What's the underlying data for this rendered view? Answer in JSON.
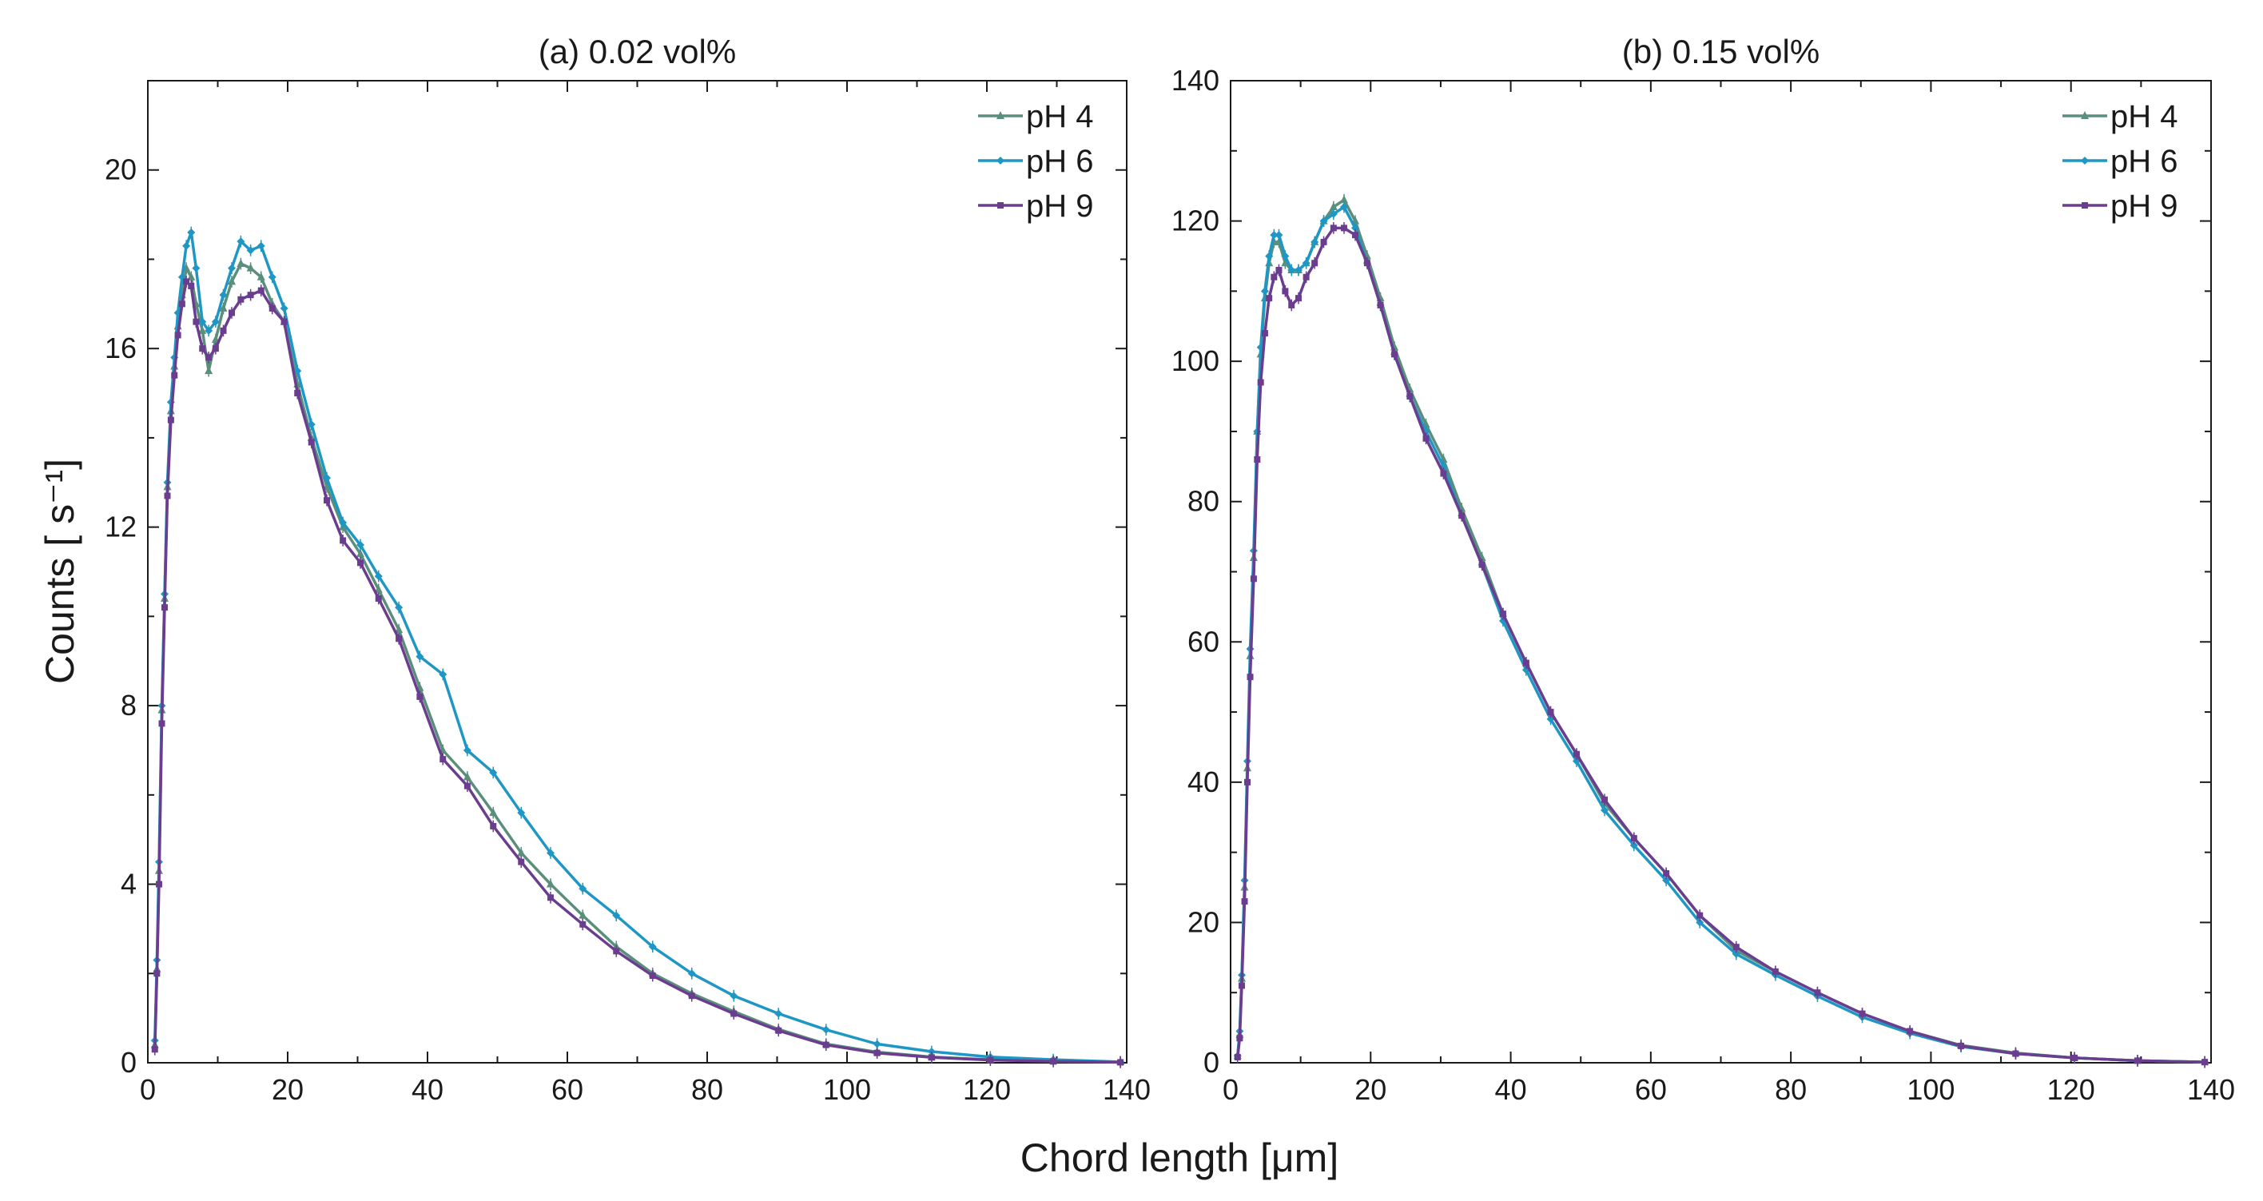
{
  "figure": {
    "xlabel": "Chord length [μm]",
    "ylabel": "Counts [ s⁻¹]"
  },
  "chart_data": [
    {
      "type": "line",
      "title": "(a) 0.02 vol%",
      "xlabel": "Chord length [μm]",
      "ylabel": "Counts [ s⁻¹]",
      "xlim": [
        0,
        140
      ],
      "ylim": [
        0,
        22
      ],
      "xticks": [
        0,
        20,
        40,
        60,
        80,
        100,
        120,
        140
      ],
      "yticks": [
        0,
        4,
        8,
        12,
        16,
        20
      ],
      "grid": false,
      "legend_position": "top-right",
      "series": [
        {
          "name": "pH 4",
          "color": "#5a8f7b",
          "marker": "triangle",
          "x": [
            1,
            1.3,
            1.6,
            2,
            2.4,
            2.8,
            3.3,
            3.8,
            4.3,
            4.9,
            5.5,
            6.2,
            6.9,
            7.8,
            8.7,
            9.7,
            10.8,
            12,
            13.3,
            14.7,
            16.2,
            17.8,
            19.5,
            21.4,
            23.4,
            25.6,
            27.9,
            30.4,
            33,
            35.9,
            38.9,
            42.2,
            45.7,
            49.4,
            53.4,
            57.6,
            62.2,
            67,
            72.2,
            77.8,
            83.8,
            90.2,
            97,
            104.3,
            112.1,
            120.5,
            129.5,
            139.1
          ],
          "values": [
            0.4,
            2.1,
            4.3,
            7.9,
            10.4,
            12.9,
            14.6,
            15.6,
            16.5,
            17.2,
            17.8,
            17.6,
            17.0,
            16.4,
            15.5,
            16.2,
            16.9,
            17.5,
            17.9,
            17.8,
            17.6,
            17.0,
            16.6,
            15.2,
            14.0,
            12.9,
            12.0,
            11.4,
            10.6,
            9.7,
            8.4,
            7.0,
            6.4,
            5.6,
            4.7,
            4.0,
            3.3,
            2.6,
            2.0,
            1.55,
            1.15,
            0.75,
            0.42,
            0.24,
            0.13,
            0.07,
            0.04,
            0.02
          ]
        },
        {
          "name": "pH 6",
          "color": "#1f97c4",
          "marker": "diamond",
          "x": [
            1,
            1.3,
            1.6,
            2,
            2.4,
            2.8,
            3.3,
            3.8,
            4.3,
            4.9,
            5.5,
            6.2,
            6.9,
            7.8,
            8.7,
            9.7,
            10.8,
            12,
            13.3,
            14.7,
            16.2,
            17.8,
            19.5,
            21.4,
            23.4,
            25.6,
            27.9,
            30.4,
            33,
            35.9,
            38.9,
            42.2,
            45.7,
            49.4,
            53.4,
            57.6,
            62.2,
            67,
            72.2,
            77.8,
            83.8,
            90.2,
            97,
            104.3,
            112.1,
            120.5,
            129.5,
            139.1
          ],
          "values": [
            0.5,
            2.3,
            4.5,
            8.0,
            10.5,
            13.0,
            14.8,
            15.8,
            16.8,
            17.6,
            18.3,
            18.6,
            17.8,
            16.6,
            16.4,
            16.6,
            17.2,
            17.8,
            18.4,
            18.2,
            18.3,
            17.6,
            16.9,
            15.5,
            14.3,
            13.1,
            12.1,
            11.6,
            10.9,
            10.2,
            9.1,
            8.7,
            7.0,
            6.5,
            5.6,
            4.7,
            3.9,
            3.3,
            2.6,
            2.0,
            1.5,
            1.1,
            0.74,
            0.42,
            0.25,
            0.13,
            0.07,
            0.02
          ]
        },
        {
          "name": "pH 9",
          "color": "#6a3d8f",
          "marker": "square",
          "x": [
            1,
            1.3,
            1.6,
            2,
            2.4,
            2.8,
            3.3,
            3.8,
            4.3,
            4.9,
            5.5,
            6.2,
            6.9,
            7.8,
            8.7,
            9.7,
            10.8,
            12,
            13.3,
            14.7,
            16.2,
            17.8,
            19.5,
            21.4,
            23.4,
            25.6,
            27.9,
            30.4,
            33,
            35.9,
            38.9,
            42.2,
            45.7,
            49.4,
            53.4,
            57.6,
            62.2,
            67,
            72.2,
            77.8,
            83.8,
            90.2,
            97,
            104.3,
            112.1,
            120.5,
            129.5,
            139.1
          ],
          "values": [
            0.3,
            2.0,
            4.0,
            7.6,
            10.2,
            12.7,
            14.4,
            15.4,
            16.3,
            17.0,
            17.5,
            17.4,
            16.6,
            16.0,
            15.8,
            16.0,
            16.4,
            16.8,
            17.1,
            17.2,
            17.3,
            16.9,
            16.6,
            15.0,
            13.9,
            12.6,
            11.7,
            11.2,
            10.4,
            9.5,
            8.2,
            6.8,
            6.2,
            5.3,
            4.5,
            3.7,
            3.1,
            2.5,
            1.95,
            1.5,
            1.1,
            0.72,
            0.4,
            0.22,
            0.12,
            0.06,
            0.03,
            0.01
          ]
        }
      ]
    },
    {
      "type": "line",
      "title": "(b) 0.15 vol%",
      "xlabel": "Chord length [μm]",
      "ylabel": "",
      "xlim": [
        0,
        140
      ],
      "ylim": [
        0,
        140
      ],
      "xticks": [
        0,
        20,
        40,
        60,
        80,
        100,
        120,
        140
      ],
      "yticks": [
        0,
        20,
        40,
        60,
        80,
        100,
        120,
        140
      ],
      "grid": false,
      "legend_position": "top-right",
      "series": [
        {
          "name": "pH 4",
          "color": "#5a8f7b",
          "marker": "triangle",
          "x": [
            1,
            1.3,
            1.6,
            2,
            2.4,
            2.8,
            3.3,
            3.8,
            4.3,
            4.9,
            5.5,
            6.2,
            6.9,
            7.8,
            8.7,
            9.7,
            10.8,
            12,
            13.3,
            14.7,
            16.2,
            17.8,
            19.5,
            21.4,
            23.4,
            25.6,
            27.9,
            30.4,
            33,
            35.9,
            38.9,
            42.2,
            45.7,
            49.4,
            53.4,
            57.6,
            62.2,
            67,
            72.2,
            77.8,
            83.8,
            90.2,
            97,
            104.3,
            112.1,
            120.5,
            129.5,
            139.1
          ],
          "values": [
            1,
            4,
            12,
            25,
            42,
            58,
            72,
            90,
            101,
            109,
            114,
            117,
            117,
            114,
            113,
            113,
            114,
            117,
            120,
            122,
            123,
            120,
            115,
            109,
            102,
            96,
            91,
            86,
            79,
            72,
            64,
            57,
            50,
            44,
            37,
            32,
            27,
            21,
            16,
            13,
            10,
            7,
            4.5,
            2.5,
            1.4,
            0.7,
            0.3,
            0.1
          ]
        },
        {
          "name": "pH 6",
          "color": "#1f97c4",
          "marker": "diamond",
          "x": [
            1,
            1.3,
            1.6,
            2,
            2.4,
            2.8,
            3.3,
            3.8,
            4.3,
            4.9,
            5.5,
            6.2,
            6.9,
            7.8,
            8.7,
            9.7,
            10.8,
            12,
            13.3,
            14.7,
            16.2,
            17.8,
            19.5,
            21.4,
            23.4,
            25.6,
            27.9,
            30.4,
            33,
            35.9,
            38.9,
            42.2,
            45.7,
            49.4,
            53.4,
            57.6,
            62.2,
            67,
            72.2,
            77.8,
            83.8,
            90.2,
            97,
            104.3,
            112.1,
            120.5,
            129.5,
            139.1
          ],
          "values": [
            1,
            4.5,
            12.5,
            26,
            43,
            59,
            73,
            90,
            102,
            110,
            115,
            118,
            118,
            115,
            113,
            113,
            114,
            117,
            120,
            121,
            122,
            119,
            114,
            108,
            101,
            95,
            90,
            85,
            78,
            71,
            63,
            56,
            49,
            43,
            36,
            31,
            26,
            20,
            15.5,
            12.5,
            9.5,
            6.5,
            4.2,
            2.3,
            1.3,
            0.7,
            0.3,
            0.1
          ]
        },
        {
          "name": "pH 9",
          "color": "#6a3d8f",
          "marker": "square",
          "x": [
            1,
            1.3,
            1.6,
            2,
            2.4,
            2.8,
            3.3,
            3.8,
            4.3,
            4.9,
            5.5,
            6.2,
            6.9,
            7.8,
            8.7,
            9.7,
            10.8,
            12,
            13.3,
            14.7,
            16.2,
            17.8,
            19.5,
            21.4,
            23.4,
            25.6,
            27.9,
            30.4,
            33,
            35.9,
            38.9,
            42.2,
            45.7,
            49.4,
            53.4,
            57.6,
            62.2,
            67,
            72.2,
            77.8,
            83.8,
            90.2,
            97,
            104.3,
            112.1,
            120.5,
            129.5,
            139.1
          ],
          "values": [
            0.8,
            3.5,
            11,
            23,
            40,
            55,
            69,
            86,
            97,
            104,
            109,
            112,
            113,
            110,
            108,
            109,
            112,
            114,
            117,
            119,
            119,
            118,
            114,
            108,
            101,
            95,
            89,
            84,
            78,
            71,
            64,
            57,
            50,
            44,
            37.5,
            32,
            27,
            21,
            16.5,
            13,
            10,
            7,
            4.5,
            2.4,
            1.3,
            0.7,
            0.3,
            0.1
          ]
        }
      ]
    }
  ]
}
